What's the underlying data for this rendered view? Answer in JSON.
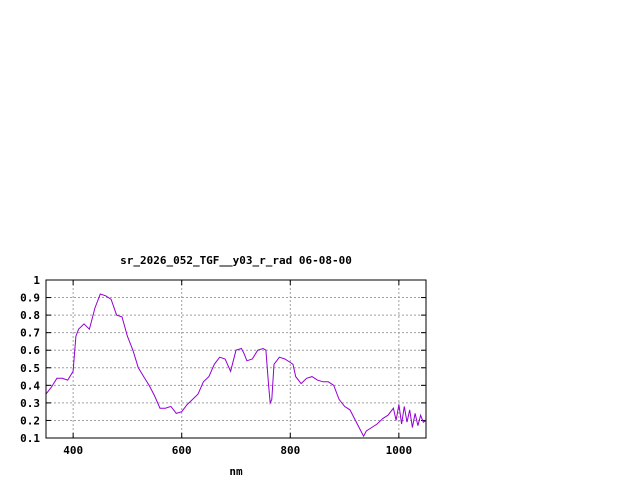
{
  "chart_data": {
    "type": "line",
    "title": "sr_2026_052_TGF__y03_r_rad 06-08-00",
    "xlabel": "nm",
    "ylabel": "",
    "xlim": [
      350,
      1050
    ],
    "ylim": [
      0.1,
      1
    ],
    "xticks": [
      "400",
      "600",
      "800",
      "1000"
    ],
    "xtick_values": [
      400,
      600,
      800,
      1000
    ],
    "yticks": [
      "0.1",
      "0.2",
      "0.3",
      "0.4",
      "0.5",
      "0.6",
      "0.7",
      "0.8",
      "0.9",
      "1"
    ],
    "ytick_values": [
      0.1,
      0.2,
      0.3,
      0.4,
      0.5,
      0.6,
      0.7,
      0.8,
      0.9,
      1
    ],
    "grid": true,
    "series_color": "#9400d3",
    "series": [
      {
        "x": [
          350,
          360,
          370,
          380,
          390,
          400,
          405,
          410,
          420,
          430,
          440,
          450,
          460,
          470,
          480,
          490,
          500,
          510,
          520,
          530,
          540,
          550,
          560,
          570,
          580,
          590,
          600,
          610,
          620,
          630,
          640,
          650,
          660,
          670,
          680,
          690,
          700,
          710,
          715,
          720,
          730,
          740,
          750,
          755,
          760,
          763,
          766,
          770,
          780,
          790,
          800,
          805,
          810,
          820,
          830,
          840,
          850,
          860,
          870,
          880,
          890,
          900,
          910,
          920,
          930,
          935,
          940,
          950,
          960,
          970,
          980,
          990,
          995,
          1000,
          1005,
          1010,
          1015,
          1020,
          1025,
          1030,
          1035,
          1040,
          1045,
          1050
        ],
        "y": [
          0.35,
          0.39,
          0.44,
          0.44,
          0.43,
          0.48,
          0.68,
          0.72,
          0.75,
          0.72,
          0.84,
          0.92,
          0.91,
          0.89,
          0.8,
          0.79,
          0.68,
          0.6,
          0.5,
          0.45,
          0.4,
          0.34,
          0.27,
          0.27,
          0.28,
          0.24,
          0.25,
          0.29,
          0.32,
          0.35,
          0.42,
          0.45,
          0.52,
          0.56,
          0.55,
          0.48,
          0.6,
          0.61,
          0.58,
          0.54,
          0.55,
          0.6,
          0.61,
          0.6,
          0.4,
          0.3,
          0.32,
          0.52,
          0.56,
          0.55,
          0.53,
          0.52,
          0.45,
          0.41,
          0.44,
          0.45,
          0.43,
          0.42,
          0.42,
          0.4,
          0.32,
          0.28,
          0.26,
          0.2,
          0.14,
          0.11,
          0.14,
          0.16,
          0.18,
          0.21,
          0.23,
          0.27,
          0.2,
          0.29,
          0.18,
          0.28,
          0.19,
          0.26,
          0.16,
          0.24,
          0.17,
          0.23,
          0.19,
          0.2
        ]
      }
    ]
  }
}
